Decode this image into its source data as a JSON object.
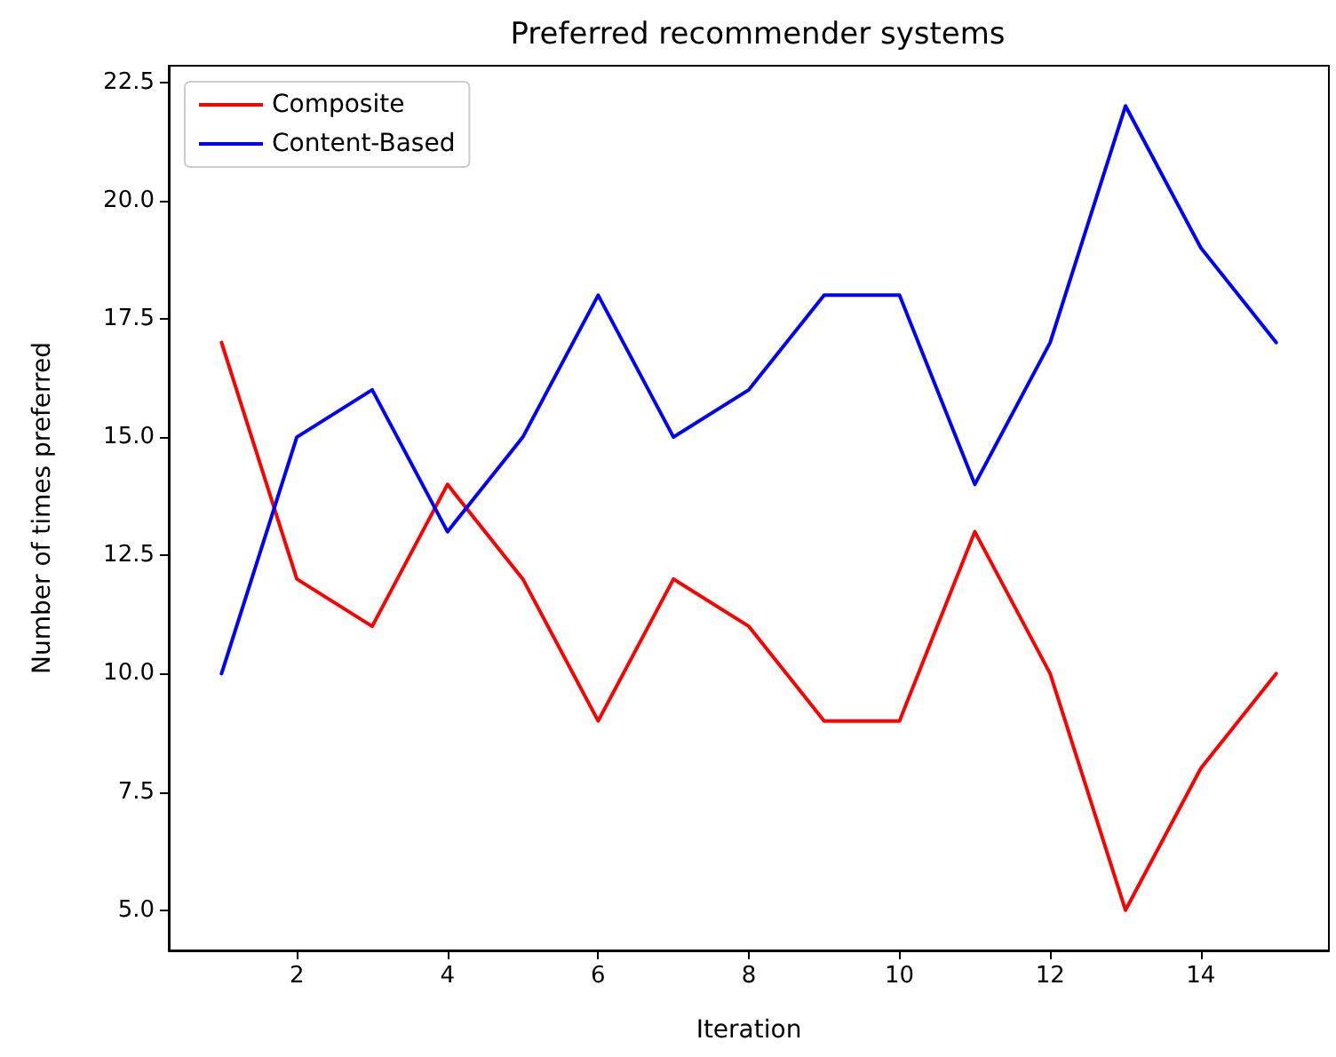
{
  "chart_data": {
    "type": "line",
    "title": "Preferred recommender systems",
    "xlabel": "Iteration",
    "ylabel": "Number of times preferred",
    "x": [
      1,
      2,
      3,
      4,
      5,
      6,
      7,
      8,
      9,
      10,
      11,
      12,
      13,
      14,
      15
    ],
    "series": [
      {
        "name": "Composite",
        "color": "#ff0000",
        "values": [
          17,
          12,
          11,
          14,
          12,
          9,
          12,
          11,
          9,
          9,
          13,
          10,
          5,
          8,
          10
        ]
      },
      {
        "name": "Content-Based",
        "color": "#0000ff",
        "values": [
          10,
          15,
          16,
          13,
          15,
          18,
          15,
          16,
          18,
          18,
          14,
          17,
          22,
          19,
          17
        ]
      }
    ],
    "xlim": [
      0.3,
      15.7
    ],
    "xticks": [
      2,
      4,
      6,
      8,
      10,
      12,
      14
    ],
    "ylim": [
      4.15,
      22.85
    ],
    "yticks": [
      {
        "value": 5,
        "label": "5.0"
      },
      {
        "value": 7.5,
        "label": "7.5"
      },
      {
        "value": 10,
        "label": "10.0"
      },
      {
        "value": 12.5,
        "label": "12.5"
      },
      {
        "value": 15,
        "label": "15.0"
      },
      {
        "value": 17.5,
        "label": "17.5"
      },
      {
        "value": 20,
        "label": "20.0"
      },
      {
        "value": 22.5,
        "label": "22.5"
      }
    ],
    "grid": false,
    "legend": "top left",
    "marker": "none",
    "line_style": "solid"
  }
}
